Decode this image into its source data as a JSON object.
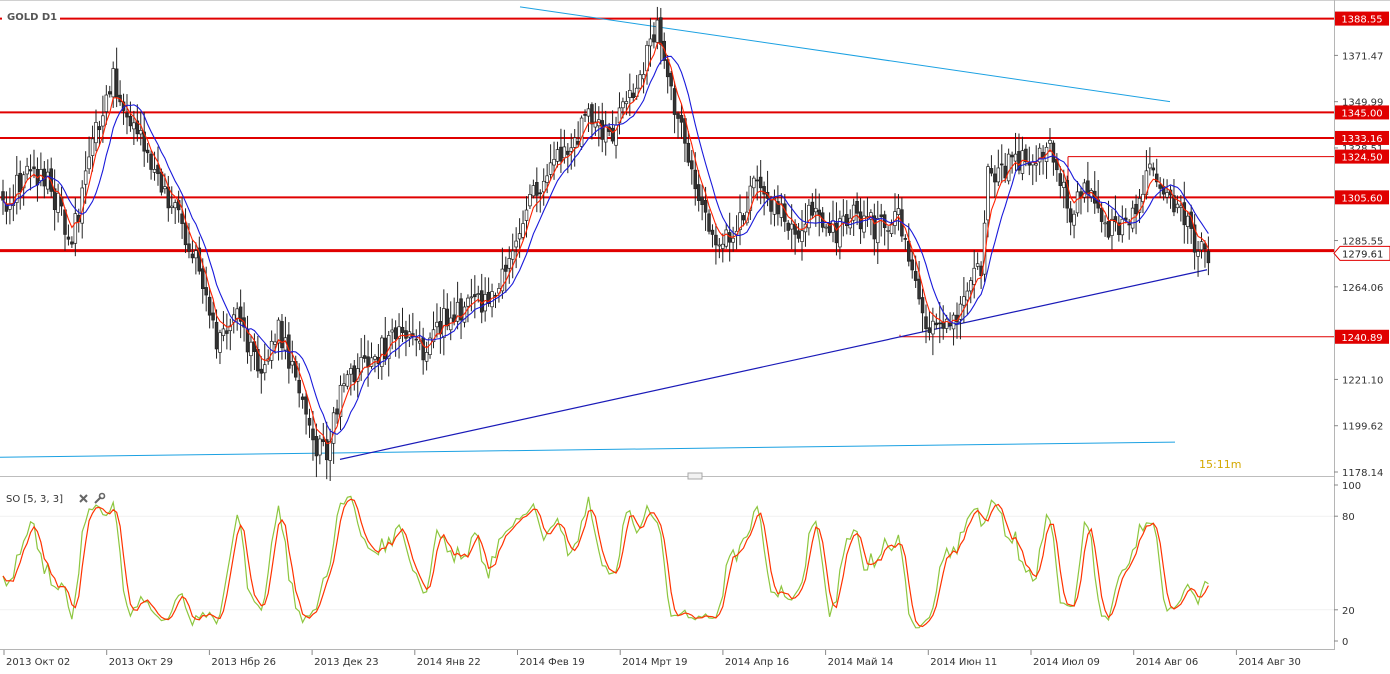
{
  "chart_data": {
    "type": "candlestick",
    "symbol_label": "GOLD D1",
    "timer": "15:11m",
    "price_axis": {
      "ylim": [
        1178.14,
        1393.0
      ],
      "ticks": [
        "1371.47",
        "1349.99",
        "1328.51",
        "1285.55",
        "1264.06",
        "1221.10",
        "1199.62",
        "1178.14"
      ],
      "current_price": "1279.61"
    },
    "levels": [
      {
        "price": 1388.55,
        "label": "1388.55"
      },
      {
        "price": 1345.0,
        "label": "1345.00"
      },
      {
        "price": 1333.16,
        "label": "1333.16"
      },
      {
        "price": 1324.5,
        "label": "1324.50"
      },
      {
        "price": 1305.6,
        "label": "1305.60"
      },
      {
        "price": 1280.9,
        "label": ""
      },
      {
        "price": 1240.89,
        "label": "1240.89"
      }
    ],
    "x_axis": {
      "labels": [
        "2013 Окт 02",
        "2013 Окт 29",
        "2013 Нбр 26",
        "2013 Дек 23",
        "2014 Янв 22",
        "2014 Фев 19",
        "2014 Мрт 19",
        "2014 Апр 16",
        "2014 Май 14",
        "2014 Июн 11",
        "2014 Июл 09",
        "2014 Авг 06",
        "2014 Авг 30"
      ]
    },
    "oscillator": {
      "label": "SO [5, 3, 3]",
      "ylim": [
        0,
        100
      ],
      "ticks": [
        "100",
        "80",
        "20",
        "0"
      ],
      "colors": {
        "main": "#8dc63f",
        "signal": "#ff3300"
      }
    },
    "close_anchors": [
      [
        0,
        1300
      ],
      [
        8,
        1320
      ],
      [
        14,
        1310
      ],
      [
        20,
        1285
      ],
      [
        26,
        1330
      ],
      [
        32,
        1360
      ],
      [
        38,
        1340
      ],
      [
        44,
        1320
      ],
      [
        50,
        1298
      ],
      [
        56,
        1275
      ],
      [
        62,
        1240
      ],
      [
        68,
        1250
      ],
      [
        74,
        1225
      ],
      [
        80,
        1245
      ],
      [
        86,
        1215
      ],
      [
        90,
        1190
      ],
      [
        94,
        1185
      ],
      [
        98,
        1215
      ],
      [
        104,
        1230
      ],
      [
        110,
        1235
      ],
      [
        116,
        1245
      ],
      [
        122,
        1235
      ],
      [
        128,
        1250
      ],
      [
        134,
        1255
      ],
      [
        140,
        1255
      ],
      [
        146,
        1270
      ],
      [
        152,
        1300
      ],
      [
        158,
        1320
      ],
      [
        164,
        1325
      ],
      [
        170,
        1345
      ],
      [
        176,
        1335
      ],
      [
        182,
        1350
      ],
      [
        188,
        1375
      ],
      [
        190,
        1385
      ],
      [
        194,
        1355
      ],
      [
        200,
        1315
      ],
      [
        206,
        1290
      ],
      [
        212,
        1285
      ],
      [
        218,
        1310
      ],
      [
        224,
        1300
      ],
      [
        230,
        1290
      ],
      [
        236,
        1300
      ],
      [
        242,
        1290
      ],
      [
        248,
        1298
      ],
      [
        254,
        1290
      ],
      [
        260,
        1295
      ],
      [
        264,
        1270
      ],
      [
        268,
        1250
      ],
      [
        272,
        1245
      ],
      [
        276,
        1250
      ],
      [
        280,
        1262
      ],
      [
        284,
        1275
      ],
      [
        286,
        1315
      ],
      [
        290,
        1320
      ],
      [
        294,
        1322
      ],
      [
        298,
        1325
      ],
      [
        302,
        1328
      ],
      [
        304,
        1335
      ],
      [
        306,
        1320
      ],
      [
        310,
        1300
      ],
      [
        314,
        1310
      ],
      [
        318,
        1300
      ],
      [
        322,
        1290
      ],
      [
        326,
        1295
      ],
      [
        330,
        1305
      ],
      [
        334,
        1320
      ],
      [
        338,
        1310
      ],
      [
        342,
        1298
      ],
      [
        346,
        1285
      ],
      [
        350,
        1280
      ]
    ],
    "seed": 20140806,
    "overlays": {
      "ema_fast_color": "#ff2200",
      "ma_slow_color": "#1a1adb",
      "trend_support_color": "#1a1ab8",
      "channel_color": "#1ba1e2"
    }
  }
}
